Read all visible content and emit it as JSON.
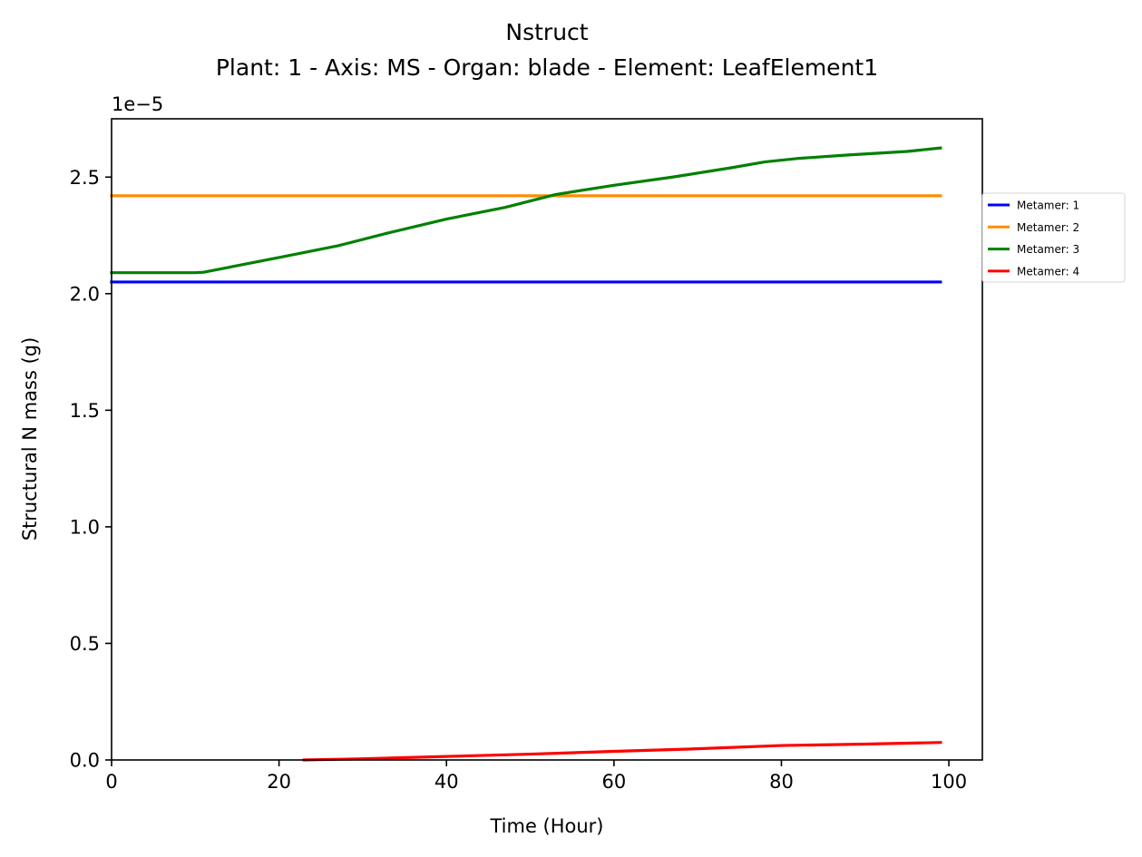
{
  "chart_data": {
    "type": "line",
    "title": "Nstruct",
    "subtitle": "Plant: 1 - Axis: MS - Organ: blade - Element: LeafElement1",
    "xlabel": "Time (Hour)",
    "ylabel": "Structural N mass (g)",
    "y_offset_text": "1e−5",
    "xlim": [
      0,
      104
    ],
    "ylim": [
      0,
      2.75
    ],
    "x_ticks": [
      0,
      20,
      40,
      60,
      80,
      100
    ],
    "x_tick_labels": [
      "0",
      "20",
      "40",
      "60",
      "80",
      "100"
    ],
    "y_ticks": [
      0,
      0.5,
      1.0,
      1.5,
      2.0,
      2.5
    ],
    "y_tick_labels": [
      "0.0",
      "0.5",
      "1.0",
      "1.5",
      "2.0",
      "2.5"
    ],
    "grid": false,
    "legend_position": "outside-right",
    "series": [
      {
        "name": "Metamer: 1",
        "color": "#0000ff",
        "points": [
          [
            0,
            2.05
          ],
          [
            99,
            2.05
          ]
        ]
      },
      {
        "name": "Metamer: 2",
        "color": "#ff8c00",
        "points": [
          [
            0,
            2.42
          ],
          [
            99,
            2.42
          ]
        ]
      },
      {
        "name": "Metamer: 3",
        "color": "#008000",
        "points": [
          [
            0,
            2.09
          ],
          [
            10,
            2.09
          ],
          [
            11,
            2.092
          ],
          [
            15,
            2.12
          ],
          [
            20,
            2.155
          ],
          [
            27,
            2.205
          ],
          [
            33,
            2.26
          ],
          [
            40,
            2.32
          ],
          [
            47,
            2.37
          ],
          [
            53,
            2.425
          ],
          [
            60,
            2.465
          ],
          [
            67,
            2.5
          ],
          [
            74,
            2.54
          ],
          [
            78,
            2.565
          ],
          [
            82,
            2.58
          ],
          [
            88,
            2.595
          ],
          [
            95,
            2.61
          ],
          [
            99,
            2.625
          ]
        ]
      },
      {
        "name": "Metamer: 4",
        "color": "#ff0000",
        "points": [
          [
            23,
            0.0
          ],
          [
            30,
            0.005
          ],
          [
            40,
            0.015
          ],
          [
            50,
            0.025
          ],
          [
            60,
            0.037
          ],
          [
            70,
            0.048
          ],
          [
            80,
            0.062
          ],
          [
            90,
            0.068
          ],
          [
            99,
            0.075
          ]
        ]
      }
    ]
  }
}
